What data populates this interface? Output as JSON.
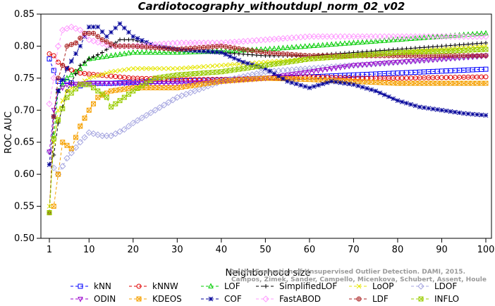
{
  "chart_data": {
    "type": "line",
    "title": "Cardiotocography_withoutdupl_norm_02_v02",
    "xlabel": "Neighborhood size",
    "ylabel": "ROC AUC",
    "xlim": [
      1,
      100
    ],
    "ylim": [
      0.5,
      0.85
    ],
    "x_ticks": [
      1,
      10,
      20,
      30,
      40,
      50,
      60,
      70,
      80,
      90,
      100
    ],
    "y_ticks": [
      0.5,
      0.55,
      0.6,
      0.65,
      0.7,
      0.75,
      0.8,
      0.85
    ],
    "x_tick_labels": [
      "1",
      "10",
      "20",
      "30",
      "40",
      "50",
      "60",
      "70",
      "80",
      "90",
      "100"
    ],
    "y_tick_labels": [
      "0.50",
      "0.55",
      "0.60",
      "0.65",
      "0.70",
      "0.75",
      "0.80",
      "0.85"
    ],
    "grid": false,
    "legend_position": "bottom",
    "watermark": [
      "Campos, Zimek, Sander, Campello, Micenkova, Schubert, Assent, Houle",
      "On the Evaluation of Unsupervised Outlier Detection. DAMI, 2015."
    ],
    "series": [
      {
        "name": "kNN",
        "color": "#0000ff",
        "marker": "square",
        "knots": [
          [
            1,
            0.78
          ],
          [
            2,
            0.762
          ],
          [
            3,
            0.745
          ],
          [
            5,
            0.745
          ],
          [
            8,
            0.738
          ],
          [
            10,
            0.742
          ],
          [
            15,
            0.742
          ],
          [
            25,
            0.745
          ],
          [
            40,
            0.747
          ],
          [
            50,
            0.75
          ],
          [
            60,
            0.752
          ],
          [
            70,
            0.755
          ],
          [
            80,
            0.758
          ],
          [
            90,
            0.761
          ],
          [
            100,
            0.764
          ]
        ]
      },
      {
        "name": "kNNW",
        "color": "#e00000",
        "marker": "circle",
        "knots": [
          [
            1,
            0.788
          ],
          [
            2,
            0.785
          ],
          [
            3,
            0.775
          ],
          [
            5,
            0.765
          ],
          [
            8,
            0.758
          ],
          [
            12,
            0.755
          ],
          [
            20,
            0.75
          ],
          [
            30,
            0.748
          ],
          [
            40,
            0.748
          ],
          [
            50,
            0.75
          ],
          [
            60,
            0.752
          ],
          [
            70,
            0.75
          ],
          [
            80,
            0.75
          ],
          [
            90,
            0.751
          ],
          [
            100,
            0.752
          ]
        ]
      },
      {
        "name": "LOF",
        "color": "#00cc00",
        "marker": "triangle",
        "knots": [
          [
            1,
            0.54
          ],
          [
            2,
            0.66
          ],
          [
            3,
            0.73
          ],
          [
            5,
            0.75
          ],
          [
            8,
            0.765
          ],
          [
            10,
            0.78
          ],
          [
            15,
            0.785
          ],
          [
            20,
            0.79
          ],
          [
            30,
            0.79
          ],
          [
            40,
            0.792
          ],
          [
            50,
            0.795
          ],
          [
            60,
            0.8
          ],
          [
            70,
            0.805
          ],
          [
            80,
            0.81
          ],
          [
            90,
            0.815
          ],
          [
            100,
            0.82
          ]
        ]
      },
      {
        "name": "SimplifiedLOF",
        "color": "#000000",
        "marker": "plus",
        "knots": [
          [
            1,
            0.615
          ],
          [
            2,
            0.63
          ],
          [
            3,
            0.68
          ],
          [
            5,
            0.73
          ],
          [
            8,
            0.77
          ],
          [
            10,
            0.78
          ],
          [
            13,
            0.79
          ],
          [
            17,
            0.81
          ],
          [
            20,
            0.81
          ],
          [
            25,
            0.8
          ],
          [
            30,
            0.795
          ],
          [
            40,
            0.79
          ],
          [
            50,
            0.785
          ],
          [
            60,
            0.785
          ],
          [
            70,
            0.79
          ],
          [
            80,
            0.795
          ],
          [
            90,
            0.8
          ],
          [
            100,
            0.805
          ]
        ]
      },
      {
        "name": "LoOP",
        "color": "#e6e600",
        "marker": "x",
        "knots": [
          [
            1,
            0.55
          ],
          [
            2,
            0.65
          ],
          [
            3,
            0.7
          ],
          [
            5,
            0.73
          ],
          [
            10,
            0.75
          ],
          [
            15,
            0.76
          ],
          [
            20,
            0.765
          ],
          [
            30,
            0.765
          ],
          [
            40,
            0.77
          ],
          [
            50,
            0.775
          ],
          [
            60,
            0.78
          ],
          [
            70,
            0.785
          ],
          [
            80,
            0.79
          ],
          [
            90,
            0.795
          ],
          [
            100,
            0.8
          ]
        ]
      },
      {
        "name": "LDOF",
        "color": "#a6a6e0",
        "marker": "diamond",
        "knots": [
          [
            1,
            0.635
          ],
          [
            2,
            0.61
          ],
          [
            3,
            0.6
          ],
          [
            5,
            0.625
          ],
          [
            8,
            0.65
          ],
          [
            10,
            0.665
          ],
          [
            13,
            0.66
          ],
          [
            15,
            0.66
          ],
          [
            18,
            0.67
          ],
          [
            20,
            0.68
          ],
          [
            25,
            0.7
          ],
          [
            30,
            0.72
          ],
          [
            40,
            0.745
          ],
          [
            50,
            0.76
          ],
          [
            60,
            0.765
          ],
          [
            70,
            0.77
          ],
          [
            80,
            0.775
          ],
          [
            90,
            0.78
          ],
          [
            100,
            0.785
          ]
        ]
      },
      {
        "name": "ODIN",
        "color": "#9900cc",
        "marker": "triangle-down",
        "knots": [
          [
            1,
            0.635
          ],
          [
            2,
            0.7
          ],
          [
            3,
            0.73
          ],
          [
            5,
            0.74
          ],
          [
            10,
            0.742
          ],
          [
            20,
            0.742
          ],
          [
            30,
            0.742
          ],
          [
            40,
            0.745
          ],
          [
            50,
            0.75
          ],
          [
            60,
            0.76
          ],
          [
            70,
            0.77
          ],
          [
            80,
            0.775
          ],
          [
            90,
            0.78
          ],
          [
            100,
            0.785
          ]
        ]
      },
      {
        "name": "KDEOS",
        "color": "#f5a000",
        "marker": "square-x",
        "knots": [
          [
            1,
            0.54
          ],
          [
            2,
            0.55
          ],
          [
            3,
            0.6
          ],
          [
            4,
            0.65
          ],
          [
            6,
            0.64
          ],
          [
            8,
            0.675
          ],
          [
            10,
            0.7
          ],
          [
            12,
            0.72
          ],
          [
            15,
            0.73
          ],
          [
            20,
            0.735
          ],
          [
            30,
            0.735
          ],
          [
            40,
            0.745
          ],
          [
            50,
            0.75
          ],
          [
            60,
            0.748
          ],
          [
            70,
            0.745
          ],
          [
            80,
            0.742
          ],
          [
            90,
            0.742
          ],
          [
            100,
            0.742
          ]
        ]
      },
      {
        "name": "COF",
        "color": "#000099",
        "marker": "asterisk",
        "knots": [
          [
            1,
            0.615
          ],
          [
            2,
            0.69
          ],
          [
            3,
            0.73
          ],
          [
            5,
            0.765
          ],
          [
            8,
            0.8
          ],
          [
            10,
            0.83
          ],
          [
            12,
            0.83
          ],
          [
            14,
            0.815
          ],
          [
            17,
            0.835
          ],
          [
            20,
            0.815
          ],
          [
            25,
            0.8
          ],
          [
            30,
            0.795
          ],
          [
            40,
            0.79
          ],
          [
            45,
            0.775
          ],
          [
            50,
            0.765
          ],
          [
            55,
            0.745
          ],
          [
            60,
            0.735
          ],
          [
            65,
            0.745
          ],
          [
            70,
            0.74
          ],
          [
            75,
            0.73
          ],
          [
            80,
            0.715
          ],
          [
            85,
            0.705
          ],
          [
            90,
            0.7
          ],
          [
            95,
            0.695
          ],
          [
            100,
            0.692
          ]
        ]
      },
      {
        "name": "FastABOD",
        "color": "#ff99ff",
        "marker": "diamond",
        "knots": [
          [
            1,
            0.71
          ],
          [
            2,
            0.75
          ],
          [
            3,
            0.8
          ],
          [
            4,
            0.825
          ],
          [
            6,
            0.83
          ],
          [
            8,
            0.825
          ],
          [
            10,
            0.81
          ],
          [
            15,
            0.8
          ],
          [
            20,
            0.8
          ],
          [
            30,
            0.805
          ],
          [
            40,
            0.805
          ],
          [
            50,
            0.81
          ],
          [
            60,
            0.815
          ],
          [
            70,
            0.815
          ],
          [
            80,
            0.815
          ],
          [
            90,
            0.815
          ],
          [
            100,
            0.815
          ]
        ]
      },
      {
        "name": "LDF",
        "color": "#aa2222",
        "marker": "circle-plus",
        "knots": [
          [
            1,
            0.54
          ],
          [
            2,
            0.69
          ],
          [
            3,
            0.75
          ],
          [
            4,
            0.77
          ],
          [
            5,
            0.8
          ],
          [
            7,
            0.805
          ],
          [
            9,
            0.82
          ],
          [
            11,
            0.82
          ],
          [
            13,
            0.81
          ],
          [
            16,
            0.8
          ],
          [
            20,
            0.8
          ],
          [
            30,
            0.795
          ],
          [
            40,
            0.8
          ],
          [
            50,
            0.79
          ],
          [
            60,
            0.785
          ],
          [
            70,
            0.785
          ],
          [
            80,
            0.785
          ],
          [
            90,
            0.785
          ],
          [
            100,
            0.785
          ]
        ]
      },
      {
        "name": "INFLO",
        "color": "#99cc00",
        "marker": "square-x",
        "knots": [
          [
            1,
            0.54
          ],
          [
            2,
            0.655
          ],
          [
            3,
            0.685
          ],
          [
            5,
            0.72
          ],
          [
            8,
            0.74
          ],
          [
            10,
            0.74
          ],
          [
            12,
            0.73
          ],
          [
            14,
            0.72
          ],
          [
            15,
            0.705
          ],
          [
            17,
            0.715
          ],
          [
            20,
            0.73
          ],
          [
            25,
            0.75
          ],
          [
            30,
            0.755
          ],
          [
            40,
            0.76
          ],
          [
            50,
            0.77
          ],
          [
            60,
            0.78
          ],
          [
            70,
            0.785
          ],
          [
            80,
            0.79
          ],
          [
            90,
            0.792
          ],
          [
            100,
            0.795
          ]
        ]
      }
    ]
  }
}
